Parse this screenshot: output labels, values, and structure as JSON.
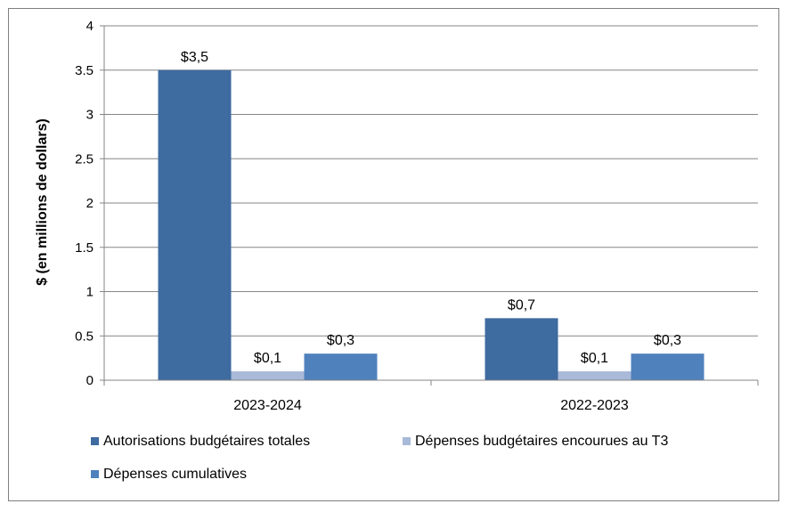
{
  "chart_data": {
    "type": "bar",
    "ylabel": "$ (en millions de dollars)",
    "xlabel": "",
    "ylim": [
      0,
      4
    ],
    "yticks": [
      0,
      0.5,
      1,
      1.5,
      2,
      2.5,
      3,
      3.5,
      4
    ],
    "ytick_labels": [
      "0",
      "0.5",
      "1",
      "1.5",
      "2",
      "2.5",
      "3",
      "3.5",
      "4"
    ],
    "grid": true,
    "legend_position": "bottom",
    "categories": [
      "2023-2024",
      "2022-2023"
    ],
    "series": [
      {
        "name": "Autorisations budgétaires totales",
        "values": [
          3.5,
          0.7
        ],
        "labels": [
          "$3,5",
          "$0,7"
        ],
        "color": "#3e6ba0"
      },
      {
        "name": "Dépenses budgétaires encourues au T3",
        "values": [
          0.1,
          0.1
        ],
        "labels": [
          "$0,1",
          "$0,1"
        ],
        "color": "#a9b9d8"
      },
      {
        "name": "Dépenses cumulatives",
        "values": [
          0.3,
          0.3
        ],
        "labels": [
          "$0,3",
          "$0,3"
        ],
        "color": "#4f81bd"
      }
    ]
  }
}
